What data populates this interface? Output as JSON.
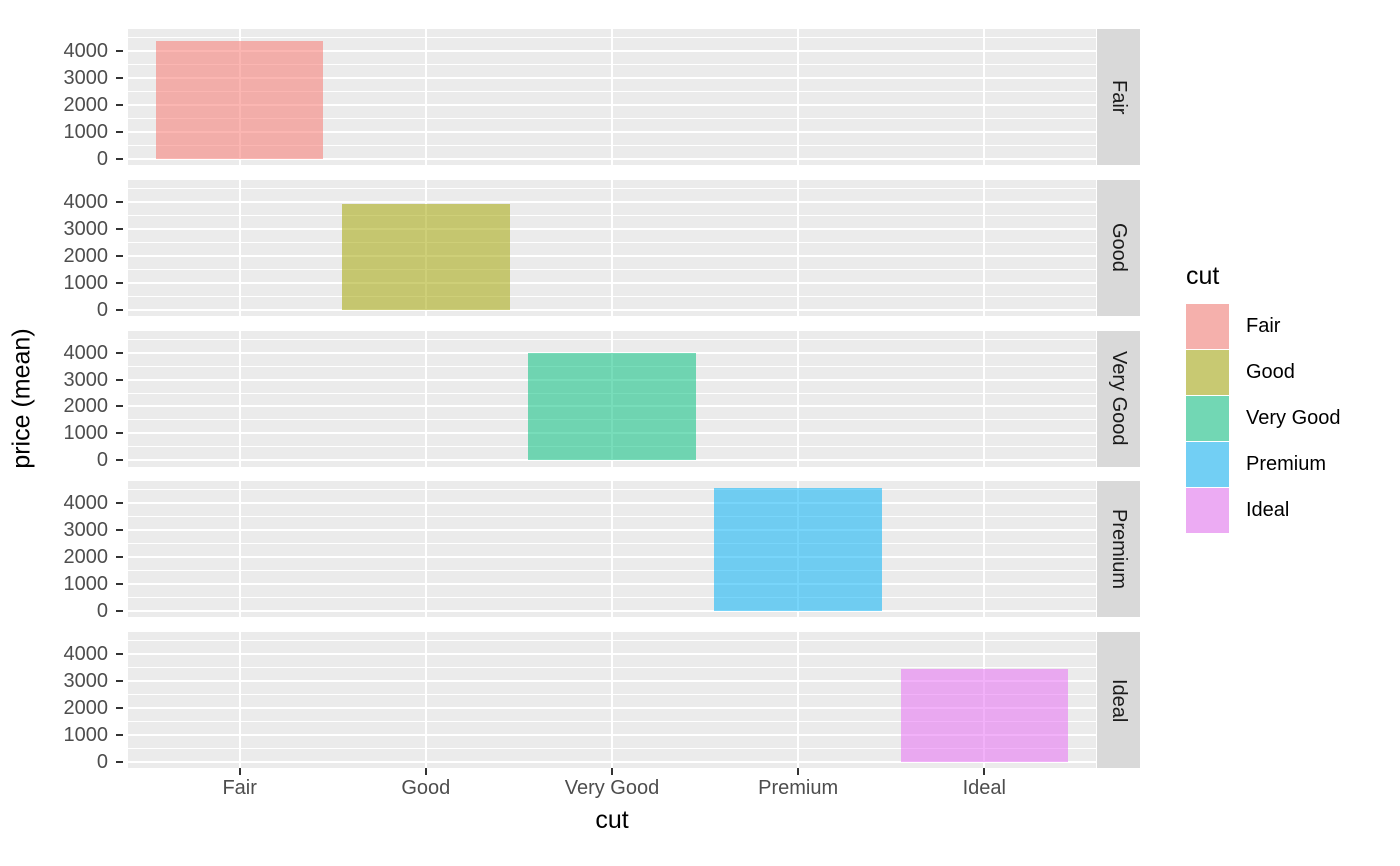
{
  "chart_data": {
    "type": "bar",
    "title": "",
    "xlabel": "cut",
    "ylabel": "price (mean)",
    "categories": [
      "Fair",
      "Good",
      "Very Good",
      "Premium",
      "Ideal"
    ],
    "values": [
      4359,
      3929,
      3982,
      4584,
      3458
    ],
    "series_colors": [
      "#F8766D",
      "#A3A500",
      "#00BF7D",
      "#00B0F6",
      "#E76BF3"
    ],
    "fill_alpha": 0.53,
    "faceting": {
      "variable": "cut",
      "direction": "rows",
      "strip_labels": [
        "Fair",
        "Good",
        "Very Good",
        "Premium",
        "Ideal"
      ],
      "strip_position": "right"
    },
    "y_ticks": [
      0,
      1000,
      2000,
      3000,
      4000
    ],
    "y_minor_gridlines": [
      500,
      1500,
      2500,
      3500,
      4500
    ],
    "ylim": [
      -229,
      4814
    ],
    "grid": "on",
    "legend": {
      "position": "right",
      "title": "cut",
      "entries": [
        "Fair",
        "Good",
        "Very Good",
        "Premium",
        "Ideal"
      ]
    },
    "colors": {
      "panel_background": "#EBEBEB",
      "strip_background": "#D9D9D9",
      "gridline": "#FFFFFF",
      "tick_mark": "#333333",
      "tick_label": "#4D4D4D",
      "axis_title": "#000000",
      "strip_text": "#1A1A1A",
      "legend_key_background": "#F2F2F2"
    }
  }
}
